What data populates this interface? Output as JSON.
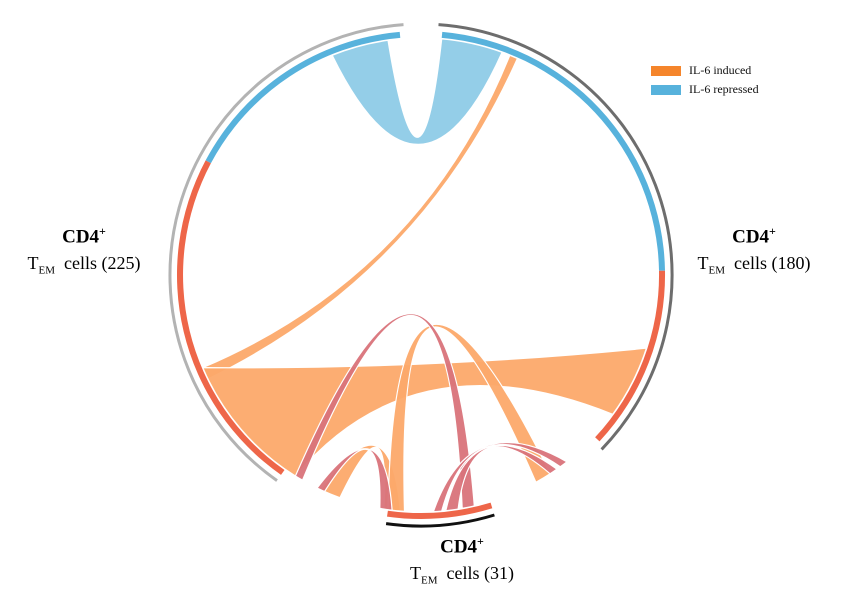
{
  "legend": [
    {
      "label": "IL-6 induced",
      "color": "#f5852b"
    },
    {
      "label": "IL-6 repressed",
      "color": "#57b2dc"
    }
  ],
  "nodes": [
    {
      "id": "left",
      "line1": "CD4",
      "sup": "+",
      "prefix": "T",
      "sub": "EM",
      "suffix": "cells (225)",
      "count": 225
    },
    {
      "id": "right",
      "line1": "CD4",
      "sup": "+",
      "prefix": "T",
      "sub": "EM",
      "suffix": "cells (180)",
      "count": 180
    },
    {
      "id": "bottom",
      "line1": "CD4",
      "sup": "+",
      "prefix": "T",
      "sub": "EM",
      "suffix": "cells (31)",
      "count": 31
    }
  ],
  "colors": {
    "induced_segment": "#ee6649",
    "repressed_segment": "#57b2dc",
    "induced_ribbon": "#fca96a",
    "repressed_ribbon": "#8ecbe7",
    "mixed_ribbon": "#d9737a",
    "outer_left": "#b3b3b3",
    "outer_right": "#6d6d6d",
    "outer_bottom": "#111111"
  }
}
